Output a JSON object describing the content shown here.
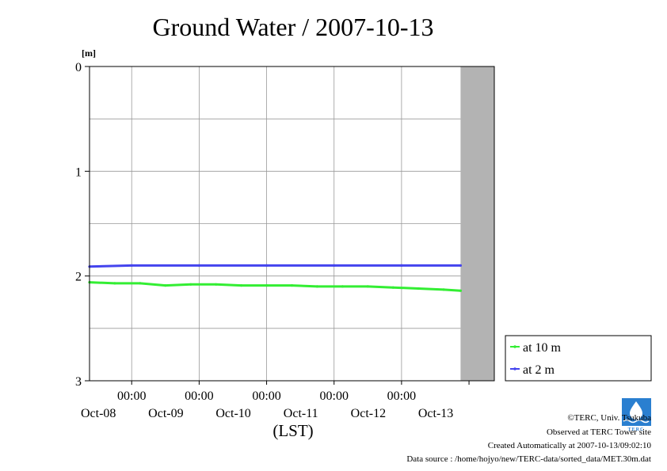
{
  "chart_data": {
    "type": "line",
    "title": "Ground Water / 2007-10-13",
    "ylabel": "[m]",
    "xlabel": "(LST)",
    "ylim": [
      3,
      0
    ],
    "y_ticks": [
      "0",
      "1",
      "2",
      "3"
    ],
    "x_range": [
      "2007-10-07 09:00",
      "2007-10-13 09:00"
    ],
    "x_ticks": [
      {
        "time": "00:00",
        "date": "Oct-08"
      },
      {
        "time": "00:00",
        "date": "Oct-09"
      },
      {
        "time": "00:00",
        "date": "Oct-10"
      },
      {
        "time": "00:00",
        "date": "Oct-11"
      },
      {
        "time": "00:00",
        "date": "Oct-12"
      },
      {
        "time": "",
        "date": "Oct-13"
      }
    ],
    "grid": true,
    "no_data_shaded_from": "2007-10-12 21:00",
    "legend_position": "right",
    "series": [
      {
        "name": "at 10 m",
        "color": "#33ee33",
        "points": [
          [
            "2007-10-07 09:00",
            2.06
          ],
          [
            "2007-10-07 18:00",
            2.07
          ],
          [
            "2007-10-08 03:00",
            2.07
          ],
          [
            "2007-10-08 12:00",
            2.09
          ],
          [
            "2007-10-08 21:00",
            2.08
          ],
          [
            "2007-10-09 06:00",
            2.08
          ],
          [
            "2007-10-09 15:00",
            2.09
          ],
          [
            "2007-10-10 00:00",
            2.09
          ],
          [
            "2007-10-10 09:00",
            2.09
          ],
          [
            "2007-10-10 18:00",
            2.1
          ],
          [
            "2007-10-11 03:00",
            2.1
          ],
          [
            "2007-10-11 12:00",
            2.1
          ],
          [
            "2007-10-11 21:00",
            2.11
          ],
          [
            "2007-10-12 06:00",
            2.12
          ],
          [
            "2007-10-12 15:00",
            2.13
          ],
          [
            "2007-10-12 21:00",
            2.14
          ]
        ]
      },
      {
        "name": "at 2 m",
        "color": "#4444ee",
        "points": [
          [
            "2007-10-07 09:00",
            1.91
          ],
          [
            "2007-10-08 00:00",
            1.9
          ],
          [
            "2007-10-09 00:00",
            1.9
          ],
          [
            "2007-10-10 00:00",
            1.9
          ],
          [
            "2007-10-11 00:00",
            1.9
          ],
          [
            "2007-10-12 00:00",
            1.9
          ],
          [
            "2007-10-12 21:00",
            1.9
          ]
        ]
      }
    ]
  },
  "logo": {
    "text": "TERC"
  },
  "footer": {
    "copyright": "©TERC, Univ. Tsukuba",
    "observed": "Observed at TERC Tower site",
    "created": "Created Automatically at 2007-10-13/09:02:10",
    "source": "Data source : /home/hojyo/new/TERC-data/sorted_data/MET.30m.dat"
  },
  "colors": {
    "grid": "#999999",
    "shade": "#b3b3b3",
    "axis": "#000000"
  }
}
